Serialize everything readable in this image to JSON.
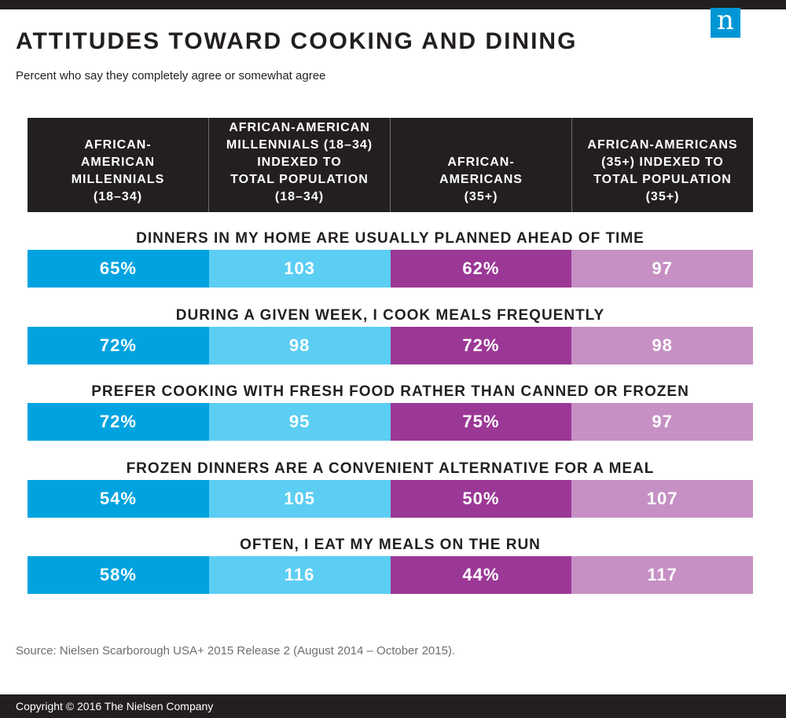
{
  "title": "ATTITUDES TOWARD COOKING AND DINING",
  "subtitle": "Percent who say they completely agree or somewhat agree",
  "logo_glyph": "n",
  "colors": {
    "col1": "#00a3e0",
    "col2": "#5ccef3",
    "col3": "#9b3896",
    "col4": "#c690c4",
    "header_bg": "#231f20"
  },
  "chart_data": {
    "type": "table",
    "columns": [
      [
        "AFRICAN-",
        "AMERICAN",
        "MILLENNIALS",
        "(18–34)"
      ],
      [
        "AFRICAN-AMERICAN",
        "MILLENNIALS (18–34)",
        "INDEXED TO",
        "TOTAL POPULATION",
        "(18–34)"
      ],
      [
        "AFRICAN-",
        "AMERICANS",
        "(35+)"
      ],
      [
        "AFRICAN-AMERICANS",
        "(35+) INDEXED TO",
        "TOTAL POPULATION",
        "(35+)"
      ]
    ],
    "rows": [
      {
        "statement": "DINNERS IN MY HOME ARE USUALLY PLANNED AHEAD OF TIME",
        "values": [
          "65%",
          "103",
          "62%",
          "97"
        ]
      },
      {
        "statement": "DURING A GIVEN WEEK, I COOK MEALS FREQUENTLY",
        "values": [
          "72%",
          "98",
          "72%",
          "98"
        ]
      },
      {
        "statement": "PREFER COOKING WITH FRESH FOOD RATHER THAN CANNED OR FROZEN",
        "values": [
          "72%",
          "95",
          "75%",
          "97"
        ]
      },
      {
        "statement": "FROZEN DINNERS ARE A CONVENIENT ALTERNATIVE FOR A MEAL",
        "values": [
          "54%",
          "105",
          "50%",
          "107"
        ]
      },
      {
        "statement": "OFTEN, I EAT MY MEALS ON THE RUN",
        "values": [
          "58%",
          "116",
          "44%",
          "117"
        ]
      }
    ]
  },
  "source": "Source: Nielsen Scarborough USA+ 2015 Release 2 (August 2014 – October 2015).",
  "copyright": "Copyright © 2016 The Nielsen Company"
}
